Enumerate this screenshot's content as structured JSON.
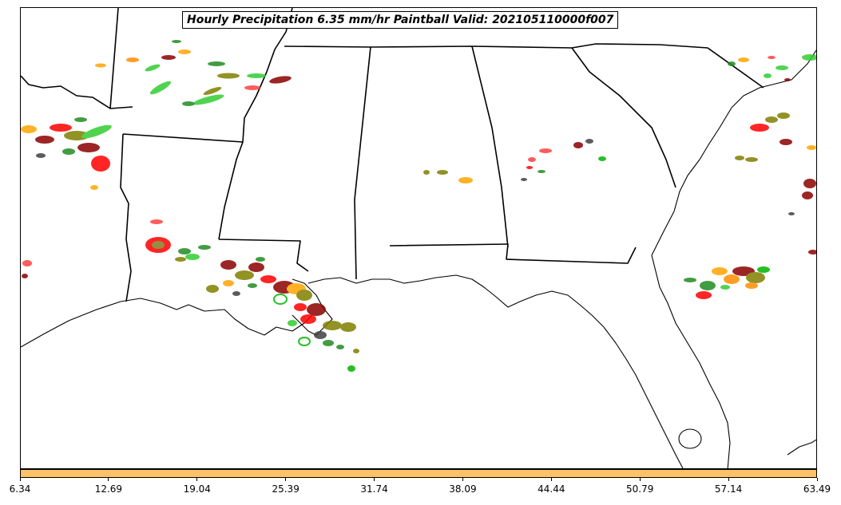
{
  "title": "Hourly Precipitation 6.35 mm/hr Paintball Valid: 202105110000f007",
  "colors": {
    "colorbar_fill": "#ffc266",
    "boundary_line": "#000000",
    "paintball_members": [
      "#ff0000",
      "#00b400",
      "#ff8c00",
      "#8b0000",
      "#228b22",
      "#808000",
      "#ff4040",
      "#32cd32",
      "#ffa500",
      "#404040"
    ]
  },
  "colorbar": {
    "ticks": [
      "6.34",
      "12.69",
      "19.04",
      "25.39",
      "31.74",
      "38.09",
      "44.44",
      "50.79",
      "57.14",
      "63.49"
    ]
  },
  "map": {
    "region": "Southeastern United States / Gulf Coast",
    "features": [
      "state boundaries",
      "coastlines",
      "precipitation paintball blobs"
    ]
  }
}
